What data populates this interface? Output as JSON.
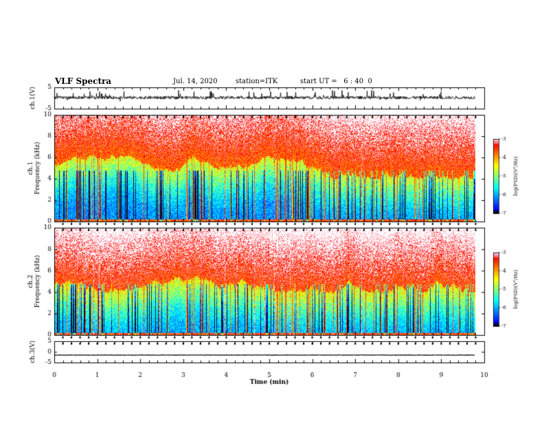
{
  "header": {
    "title": "VLF Spectra",
    "date": "Jul. 14, 2020",
    "station": "station=ITK",
    "start": "start UT =   6 : 40  0"
  },
  "colorbar": {
    "label": "log(PSD)(V²/Hz)",
    "ticks": [
      "-3",
      "-4",
      "-5",
      "-6",
      "-7"
    ]
  },
  "chart_data": [
    {
      "type": "line",
      "name": "ch.1 waveform",
      "ylabel": "ch.1(V)",
      "ylim": [
        -5,
        5
      ],
      "yticks": [
        "5",
        "-5"
      ],
      "xlim": [
        0,
        10
      ],
      "mean": 0.2,
      "range": [
        -1.5,
        2.5
      ]
    },
    {
      "type": "heatmap",
      "name": "ch.1 spectrogram",
      "ylabel": "ch.1\nFrequency (kHz)",
      "ylim": [
        0,
        10
      ],
      "yticks": [
        "0",
        "2",
        "4",
        "6",
        "8",
        "10"
      ],
      "xlim": [
        0,
        9.85
      ],
      "zlim": [
        -7,
        -3
      ],
      "structure": "broadband impulsive noise; PSD high (-3) above ~5 kHz, low (-6 to -7) below ~4.5 kHz"
    },
    {
      "type": "heatmap",
      "name": "ch.2 spectrogram",
      "ylabel": "ch.2\nFrequency (kHz)",
      "ylim": [
        0,
        10
      ],
      "yticks": [
        "0",
        "2",
        "4",
        "6",
        "8",
        "10"
      ],
      "xlim": [
        0,
        9.85
      ],
      "zlim": [
        -7,
        -3
      ],
      "structure": "broadband impulsive noise; PSD high (-3) above ~5 kHz, low (-6 to -7) below ~4.5 kHz"
    },
    {
      "type": "line",
      "name": "ch.3 waveform",
      "ylabel": "ch.3(V)",
      "ylim": [
        -5,
        5
      ],
      "yticks": [
        "5",
        "0",
        "-5"
      ],
      "xlim": [
        0,
        10
      ],
      "mean": -1.5,
      "range": [
        -1.6,
        -1.4
      ]
    }
  ],
  "xaxis": {
    "label": "Time (min)",
    "ticks": [
      "0",
      "1",
      "2",
      "3",
      "4",
      "5",
      "6",
      "7",
      "8",
      "9",
      "10"
    ]
  }
}
